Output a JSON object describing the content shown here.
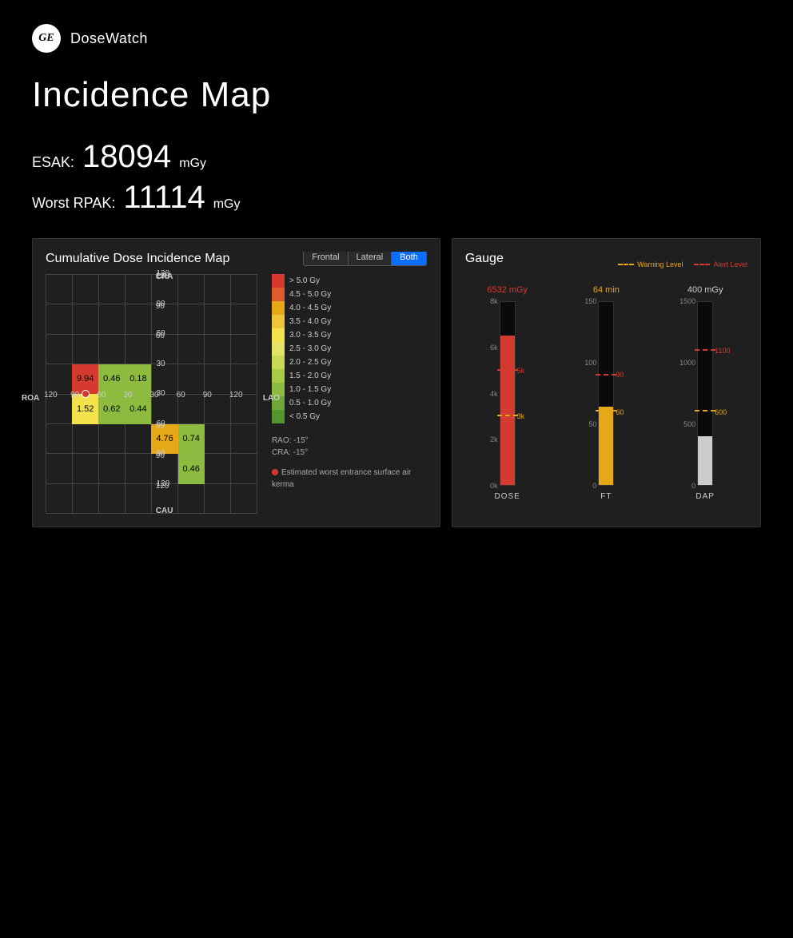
{
  "app": {
    "logo_text": "GE",
    "name": "DoseWatch"
  },
  "page": {
    "title": "Incidence Map"
  },
  "metrics": {
    "esak": {
      "label": "ESAK:",
      "value": "18094",
      "unit": "mGy"
    },
    "worst_rpak": {
      "label": "Worst RPAK:",
      "value": "11114",
      "unit": "mGy"
    }
  },
  "heatmap_panel": {
    "title": "Cumulative Dose Incidence Map",
    "view_toggle": {
      "options": [
        "Frontal",
        "Lateral",
        "Both"
      ],
      "active": "Both"
    },
    "axes": {
      "top": "CRA",
      "bottom": "CAU",
      "left": "ROA",
      "right": "LAO",
      "x_ticks": [
        120,
        90,
        60,
        30,
        30,
        60,
        90,
        120
      ],
      "y_ticks": [
        120,
        90,
        60,
        30,
        30,
        60,
        90,
        120
      ]
    },
    "grid_dim": 8,
    "cells": [
      {
        "col": 1,
        "row": 3,
        "value": "9.94",
        "color": "#d43a2f"
      },
      {
        "col": 2,
        "row": 3,
        "value": "0.46",
        "color": "#8dbb3f"
      },
      {
        "col": 3,
        "row": 3,
        "value": "0.18",
        "color": "#8dbb3f"
      },
      {
        "col": 1,
        "row": 4,
        "value": "1.52",
        "color": "#f3e24b"
      },
      {
        "col": 2,
        "row": 4,
        "value": "0.62",
        "color": "#8dbb3f"
      },
      {
        "col": 3,
        "row": 4,
        "value": "0.44",
        "color": "#8dbb3f"
      },
      {
        "col": 4,
        "row": 5,
        "value": "4.76",
        "color": "#e6a817"
      },
      {
        "col": 5,
        "row": 5,
        "value": "0.74",
        "color": "#8dbb3f"
      },
      {
        "col": 5,
        "row": 6,
        "value": "0.46",
        "color": "#8dbb3f"
      }
    ],
    "marker": {
      "col": 1.5,
      "row": 4,
      "note": "Estimated worst entrance surface air kerma"
    },
    "legend": {
      "items": [
        {
          "label": "> 5.0 Gy",
          "color": "#d43a2f"
        },
        {
          "label": "4.5 - 5.0 Gy",
          "color": "#e05a2c"
        },
        {
          "label": "4.0 - 4.5 Gy",
          "color": "#e6a817"
        },
        {
          "label": "3.5 - 4.0 Gy",
          "color": "#edc63a"
        },
        {
          "label": "3.0 - 3.5 Gy",
          "color": "#f3e24b"
        },
        {
          "label": "2.5 - 3.0 Gy",
          "color": "#e4e366"
        },
        {
          "label": "2.0 - 2.5 Gy",
          "color": "#c9d955"
        },
        {
          "label": "1.5 - 2.0 Gy",
          "color": "#aacb49"
        },
        {
          "label": "1.0 - 1.5 Gy",
          "color": "#8dbb3f"
        },
        {
          "label": "0.5 - 1.0 Gy",
          "color": "#6fa836"
        },
        {
          "label": "< 0.5 Gy",
          "color": "#55952f"
        }
      ],
      "info_lines": [
        "RAO: -15°",
        "CRA: -15°"
      ]
    }
  },
  "gauge_panel": {
    "title": "Gauge",
    "legend": {
      "warning": "Warning Level",
      "alert": "Alert Level"
    },
    "gauges": [
      {
        "name": "DOSE",
        "value_label": "6532 mGy",
        "value_color": "#d43a2f",
        "max": 8000,
        "fill": 6532,
        "fill_color": "#d43a2f",
        "ticks_left": [
          {
            "v": 0,
            "l": "0k"
          },
          {
            "v": 2000,
            "l": "2k"
          },
          {
            "v": 4000,
            "l": "4k"
          },
          {
            "v": 6000,
            "l": "6k"
          },
          {
            "v": 8000,
            "l": "8k"
          }
        ],
        "warn": 3000,
        "warn_label": "3k",
        "alert": 5000,
        "alert_label": "5k"
      },
      {
        "name": "FT",
        "value_label": "64 min",
        "value_color": "#e6a817",
        "max": 150,
        "fill": 64,
        "fill_color": "#e6a817",
        "ticks_left": [
          {
            "v": 0,
            "l": "0"
          },
          {
            "v": 50,
            "l": "50"
          },
          {
            "v": 100,
            "l": "100"
          },
          {
            "v": 150,
            "l": "150"
          }
        ],
        "warn": 60,
        "warn_label": "60",
        "alert": 90,
        "alert_label": "90"
      },
      {
        "name": "DAP",
        "value_label": "400 mGy",
        "value_color": "#cccccc",
        "max": 1500,
        "fill": 400,
        "fill_color": "#cccccc",
        "ticks_left": [
          {
            "v": 0,
            "l": "0"
          },
          {
            "v": 500,
            "l": "500"
          },
          {
            "v": 1000,
            "l": "1000"
          },
          {
            "v": 1500,
            "l": "1500"
          }
        ],
        "warn": 600,
        "warn_label": "600",
        "alert": 1100,
        "alert_label": "1100"
      }
    ]
  }
}
